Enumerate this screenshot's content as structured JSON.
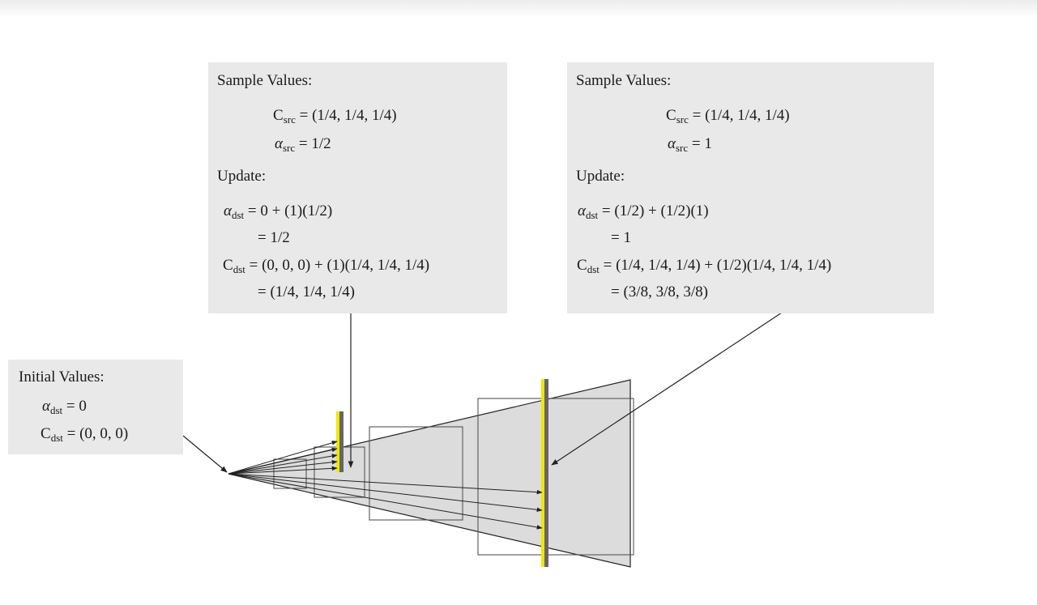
{
  "initial": {
    "title": "Initial Values:",
    "alpha": {
      "lhs": "α",
      "sub": "dst",
      "rhs": "= 0"
    },
    "color": {
      "lhs": "C",
      "sub": "dst",
      "rhs": "= (0, 0, 0)"
    }
  },
  "sample1": {
    "title": "Sample Values:",
    "c_src": {
      "lhs": "C",
      "sub": "src",
      "rhs": "= (1/4, 1/4, 1/4)"
    },
    "a_src": {
      "lhs": "α",
      "sub": "src",
      "rhs": "= 1/2"
    },
    "update_title": "Update:",
    "a_dst": {
      "lhs": "α",
      "sub": "dst",
      "rhs": "= 0 + (1)(1/2)"
    },
    "a_dst_result": "= 1/2",
    "c_dst": {
      "lhs": "C",
      "sub": "dst",
      "rhs": "= (0, 0, 0) + (1)(1/4, 1/4, 1/4)"
    },
    "c_dst_result": "= (1/4, 1/4, 1/4)"
  },
  "sample2": {
    "title": "Sample Values:",
    "c_src": {
      "lhs": "C",
      "sub": "src",
      "rhs": "= (1/4, 1/4, 1/4)"
    },
    "a_src": {
      "lhs": "α",
      "sub": "src",
      "rhs": "= 1"
    },
    "update_title": "Update:",
    "a_dst": {
      "lhs": "α",
      "sub": "dst",
      "rhs": "= (1/2) + (1/2)(1)"
    },
    "a_dst_result": "= 1",
    "c_dst": {
      "lhs": "C",
      "sub": "dst",
      "rhs": "= (1/4, 1/4, 1/4) + (1/2)(1/4, 1/4, 1/4)"
    },
    "c_dst_result": "= (3/8, 3/8, 3/8)"
  },
  "colors": {
    "box_fill": "#e9e9e9",
    "frustum_fill": "#dcdcdc",
    "line": "#222222",
    "sample_plane": "#f2e600"
  }
}
